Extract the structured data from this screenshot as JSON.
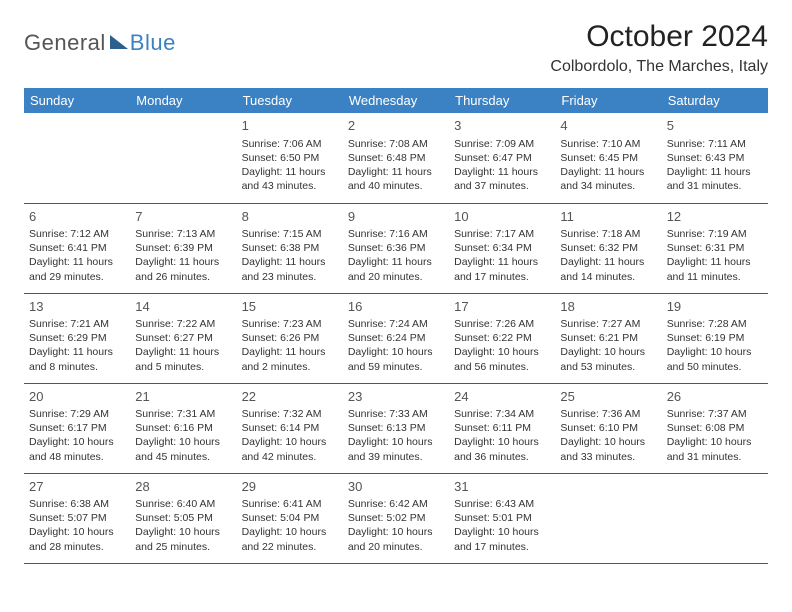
{
  "logo": {
    "general": "General",
    "blue": "Blue"
  },
  "title": "October 2024",
  "location": "Colbordolo, The Marches, Italy",
  "weekdays": [
    "Sunday",
    "Monday",
    "Tuesday",
    "Wednesday",
    "Thursday",
    "Friday",
    "Saturday"
  ],
  "colors": {
    "header_bg": "#3b82c4",
    "header_text": "#ffffff",
    "border": "#2c5f8d",
    "text": "#333333",
    "daynum": "#555555"
  },
  "typography": {
    "title_fontsize": 30,
    "location_fontsize": 16,
    "weekday_fontsize": 13,
    "daynum_fontsize": 13,
    "cell_fontsize": 10.5
  },
  "grid": [
    [
      null,
      null,
      {
        "n": "1",
        "sr": "Sunrise: 7:06 AM",
        "ss": "Sunset: 6:50 PM",
        "d1": "Daylight: 11 hours",
        "d2": "and 43 minutes."
      },
      {
        "n": "2",
        "sr": "Sunrise: 7:08 AM",
        "ss": "Sunset: 6:48 PM",
        "d1": "Daylight: 11 hours",
        "d2": "and 40 minutes."
      },
      {
        "n": "3",
        "sr": "Sunrise: 7:09 AM",
        "ss": "Sunset: 6:47 PM",
        "d1": "Daylight: 11 hours",
        "d2": "and 37 minutes."
      },
      {
        "n": "4",
        "sr": "Sunrise: 7:10 AM",
        "ss": "Sunset: 6:45 PM",
        "d1": "Daylight: 11 hours",
        "d2": "and 34 minutes."
      },
      {
        "n": "5",
        "sr": "Sunrise: 7:11 AM",
        "ss": "Sunset: 6:43 PM",
        "d1": "Daylight: 11 hours",
        "d2": "and 31 minutes."
      }
    ],
    [
      {
        "n": "6",
        "sr": "Sunrise: 7:12 AM",
        "ss": "Sunset: 6:41 PM",
        "d1": "Daylight: 11 hours",
        "d2": "and 29 minutes."
      },
      {
        "n": "7",
        "sr": "Sunrise: 7:13 AM",
        "ss": "Sunset: 6:39 PM",
        "d1": "Daylight: 11 hours",
        "d2": "and 26 minutes."
      },
      {
        "n": "8",
        "sr": "Sunrise: 7:15 AM",
        "ss": "Sunset: 6:38 PM",
        "d1": "Daylight: 11 hours",
        "d2": "and 23 minutes."
      },
      {
        "n": "9",
        "sr": "Sunrise: 7:16 AM",
        "ss": "Sunset: 6:36 PM",
        "d1": "Daylight: 11 hours",
        "d2": "and 20 minutes."
      },
      {
        "n": "10",
        "sr": "Sunrise: 7:17 AM",
        "ss": "Sunset: 6:34 PM",
        "d1": "Daylight: 11 hours",
        "d2": "and 17 minutes."
      },
      {
        "n": "11",
        "sr": "Sunrise: 7:18 AM",
        "ss": "Sunset: 6:32 PM",
        "d1": "Daylight: 11 hours",
        "d2": "and 14 minutes."
      },
      {
        "n": "12",
        "sr": "Sunrise: 7:19 AM",
        "ss": "Sunset: 6:31 PM",
        "d1": "Daylight: 11 hours",
        "d2": "and 11 minutes."
      }
    ],
    [
      {
        "n": "13",
        "sr": "Sunrise: 7:21 AM",
        "ss": "Sunset: 6:29 PM",
        "d1": "Daylight: 11 hours",
        "d2": "and 8 minutes."
      },
      {
        "n": "14",
        "sr": "Sunrise: 7:22 AM",
        "ss": "Sunset: 6:27 PM",
        "d1": "Daylight: 11 hours",
        "d2": "and 5 minutes."
      },
      {
        "n": "15",
        "sr": "Sunrise: 7:23 AM",
        "ss": "Sunset: 6:26 PM",
        "d1": "Daylight: 11 hours",
        "d2": "and 2 minutes."
      },
      {
        "n": "16",
        "sr": "Sunrise: 7:24 AM",
        "ss": "Sunset: 6:24 PM",
        "d1": "Daylight: 10 hours",
        "d2": "and 59 minutes."
      },
      {
        "n": "17",
        "sr": "Sunrise: 7:26 AM",
        "ss": "Sunset: 6:22 PM",
        "d1": "Daylight: 10 hours",
        "d2": "and 56 minutes."
      },
      {
        "n": "18",
        "sr": "Sunrise: 7:27 AM",
        "ss": "Sunset: 6:21 PM",
        "d1": "Daylight: 10 hours",
        "d2": "and 53 minutes."
      },
      {
        "n": "19",
        "sr": "Sunrise: 7:28 AM",
        "ss": "Sunset: 6:19 PM",
        "d1": "Daylight: 10 hours",
        "d2": "and 50 minutes."
      }
    ],
    [
      {
        "n": "20",
        "sr": "Sunrise: 7:29 AM",
        "ss": "Sunset: 6:17 PM",
        "d1": "Daylight: 10 hours",
        "d2": "and 48 minutes."
      },
      {
        "n": "21",
        "sr": "Sunrise: 7:31 AM",
        "ss": "Sunset: 6:16 PM",
        "d1": "Daylight: 10 hours",
        "d2": "and 45 minutes."
      },
      {
        "n": "22",
        "sr": "Sunrise: 7:32 AM",
        "ss": "Sunset: 6:14 PM",
        "d1": "Daylight: 10 hours",
        "d2": "and 42 minutes."
      },
      {
        "n": "23",
        "sr": "Sunrise: 7:33 AM",
        "ss": "Sunset: 6:13 PM",
        "d1": "Daylight: 10 hours",
        "d2": "and 39 minutes."
      },
      {
        "n": "24",
        "sr": "Sunrise: 7:34 AM",
        "ss": "Sunset: 6:11 PM",
        "d1": "Daylight: 10 hours",
        "d2": "and 36 minutes."
      },
      {
        "n": "25",
        "sr": "Sunrise: 7:36 AM",
        "ss": "Sunset: 6:10 PM",
        "d1": "Daylight: 10 hours",
        "d2": "and 33 minutes."
      },
      {
        "n": "26",
        "sr": "Sunrise: 7:37 AM",
        "ss": "Sunset: 6:08 PM",
        "d1": "Daylight: 10 hours",
        "d2": "and 31 minutes."
      }
    ],
    [
      {
        "n": "27",
        "sr": "Sunrise: 6:38 AM",
        "ss": "Sunset: 5:07 PM",
        "d1": "Daylight: 10 hours",
        "d2": "and 28 minutes."
      },
      {
        "n": "28",
        "sr": "Sunrise: 6:40 AM",
        "ss": "Sunset: 5:05 PM",
        "d1": "Daylight: 10 hours",
        "d2": "and 25 minutes."
      },
      {
        "n": "29",
        "sr": "Sunrise: 6:41 AM",
        "ss": "Sunset: 5:04 PM",
        "d1": "Daylight: 10 hours",
        "d2": "and 22 minutes."
      },
      {
        "n": "30",
        "sr": "Sunrise: 6:42 AM",
        "ss": "Sunset: 5:02 PM",
        "d1": "Daylight: 10 hours",
        "d2": "and 20 minutes."
      },
      {
        "n": "31",
        "sr": "Sunrise: 6:43 AM",
        "ss": "Sunset: 5:01 PM",
        "d1": "Daylight: 10 hours",
        "d2": "and 17 minutes."
      },
      null,
      null
    ]
  ]
}
